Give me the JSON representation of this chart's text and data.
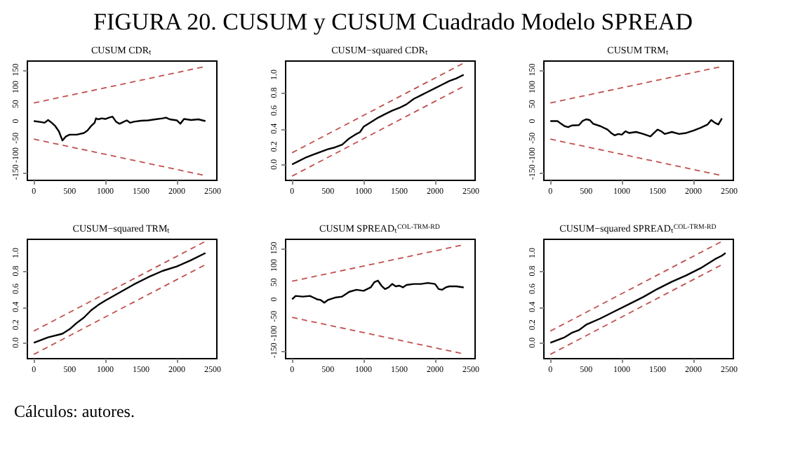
{
  "chart_data": [
    {
      "type": "other",
      "title": "FIGURA 20.  CUSUM y CUSUM Cuadrado Modelo SPREAD",
      "annotations": [
        "Cálculos: autores."
      ]
    },
    {
      "type": "line",
      "title": "CUSUM CDRₜ",
      "xlim": [
        -100,
        2550
      ],
      "xticks": [
        0,
        500,
        1000,
        1500,
        2000,
        2500
      ],
      "ylim": [
        -172,
        178
      ],
      "yticks": [
        -150,
        -100,
        -50,
        0,
        50,
        100,
        150
      ],
      "series": [
        {
          "color": "#000000",
          "x": [
            0,
            100,
            150,
            200,
            250,
            300,
            350,
            400,
            450,
            500,
            600,
            700,
            750,
            800,
            850,
            870,
            900,
            950,
            1000,
            1050,
            1100,
            1150,
            1200,
            1250,
            1300,
            1350,
            1400,
            1500,
            1600,
            1700,
            1800,
            1850,
            1900,
            2000,
            2050,
            2100,
            2200,
            2300,
            2400
          ],
          "values": [
            0,
            -3,
            -5,
            3,
            -5,
            -15,
            -30,
            -57,
            -45,
            -40,
            -40,
            -35,
            -28,
            -15,
            -5,
            8,
            5,
            8,
            6,
            10,
            13,
            -2,
            -8,
            -3,
            2,
            -5,
            -2,
            1,
            2,
            5,
            8,
            10,
            5,
            2,
            -8,
            6,
            3,
            5,
            0
          ]
        },
        {
          "color": "#c0504d",
          "line_style": "dashed",
          "x": [
            0,
            2400
          ],
          "values": [
            53,
            160
          ]
        },
        {
          "color": "#c0504d",
          "line_style": "dashed",
          "x": [
            0,
            2400
          ],
          "values": [
            -53,
            -160
          ]
        }
      ]
    },
    {
      "type": "line",
      "title": "CUSUM−squared CDRₜ",
      "xlim": [
        -100,
        2550
      ],
      "xticks": [
        0,
        500,
        1000,
        1500,
        2000,
        2500
      ],
      "ylim": [
        -0.17,
        1.16
      ],
      "yticks": [
        {
          "value": 0,
          "label": "0.0"
        },
        {
          "value": 0.2,
          "label": "0.2"
        },
        {
          "value": 0.4,
          "label": "0.4"
        },
        {
          "value": 0.6,
          "label": "0.6"
        },
        {
          "value": 0.8,
          "label": "0.8"
        },
        {
          "value": 1,
          "label": "1.0"
        }
      ],
      "series": [
        {
          "color": "#000000",
          "x": [
            0,
            100,
            200,
            300,
            400,
            500,
            600,
            700,
            800,
            900,
            950,
            1000,
            1100,
            1200,
            1300,
            1400,
            1500,
            1600,
            1700,
            1800,
            1900,
            2000,
            2100,
            2200,
            2300,
            2400
          ],
          "values": [
            0,
            0.04,
            0.08,
            0.11,
            0.14,
            0.17,
            0.19,
            0.22,
            0.29,
            0.34,
            0.36,
            0.42,
            0.47,
            0.52,
            0.56,
            0.6,
            0.63,
            0.67,
            0.73,
            0.77,
            0.81,
            0.85,
            0.89,
            0.93,
            0.96,
            1
          ]
        },
        {
          "color": "#c0504d",
          "line_style": "dashed",
          "x": [
            0,
            2400
          ],
          "values": [
            0.13,
            1.13
          ]
        },
        {
          "color": "#c0504d",
          "line_style": "dashed",
          "x": [
            0,
            2400
          ],
          "values": [
            -0.13,
            0.87
          ]
        }
      ]
    },
    {
      "type": "line",
      "title": "CUSUM TRMₜ",
      "xlim": [
        -100,
        2550
      ],
      "xticks": [
        0,
        500,
        1000,
        1500,
        2000,
        2500
      ],
      "ylim": [
        -172,
        178
      ],
      "yticks": [
        -150,
        -100,
        -50,
        0,
        50,
        100,
        150
      ],
      "series": [
        {
          "color": "#000000",
          "x": [
            0,
            100,
            150,
            200,
            250,
            300,
            400,
            450,
            500,
            550,
            600,
            700,
            800,
            850,
            900,
            950,
            1000,
            1050,
            1100,
            1200,
            1300,
            1400,
            1450,
            1500,
            1550,
            1600,
            1700,
            1800,
            1900,
            2000,
            2100,
            2200,
            2250,
            2300,
            2350,
            2400
          ],
          "values": [
            0,
            0,
            -8,
            -15,
            -18,
            -13,
            -12,
            0,
            5,
            3,
            -8,
            -15,
            -25,
            -35,
            -42,
            -38,
            -40,
            -30,
            -35,
            -32,
            -38,
            -45,
            -35,
            -25,
            -30,
            -38,
            -32,
            -38,
            -35,
            -28,
            -20,
            -10,
            3,
            -5,
            -10,
            8
          ]
        },
        {
          "color": "#c0504d",
          "line_style": "dashed",
          "x": [
            0,
            2400
          ],
          "values": [
            53,
            160
          ]
        },
        {
          "color": "#c0504d",
          "line_style": "dashed",
          "x": [
            0,
            2400
          ],
          "values": [
            -53,
            -160
          ]
        }
      ]
    },
    {
      "type": "line",
      "title": "CUSUM−squared TRMₜ",
      "xlim": [
        -100,
        2550
      ],
      "xticks": [
        0,
        500,
        1000,
        1500,
        2000,
        2500
      ],
      "ylim": [
        -0.17,
        1.16
      ],
      "yticks": [
        {
          "value": 0,
          "label": "0.0"
        },
        {
          "value": 0.2,
          "label": "0.2"
        },
        {
          "value": 0.4,
          "label": "0.4"
        },
        {
          "value": 0.6,
          "label": "0.6"
        },
        {
          "value": 0.8,
          "label": "0.8"
        },
        {
          "value": 1,
          "label": "1.0"
        }
      ],
      "series": [
        {
          "color": "#000000",
          "x": [
            0,
            200,
            400,
            500,
            600,
            700,
            800,
            900,
            1000,
            1200,
            1400,
            1600,
            1800,
            2000,
            2200,
            2400
          ],
          "values": [
            0,
            0.06,
            0.1,
            0.15,
            0.22,
            0.28,
            0.36,
            0.42,
            0.47,
            0.56,
            0.65,
            0.73,
            0.8,
            0.85,
            0.92,
            1
          ]
        },
        {
          "color": "#c0504d",
          "line_style": "dashed",
          "x": [
            0,
            2400
          ],
          "values": [
            0.13,
            1.13
          ]
        },
        {
          "color": "#c0504d",
          "line_style": "dashed",
          "x": [
            0,
            2400
          ],
          "values": [
            -0.13,
            0.87
          ]
        }
      ]
    },
    {
      "type": "line",
      "title": "CUSUM SPREADₜ$^{COL-TRM-RD}$",
      "xlim": [
        -100,
        2550
      ],
      "xticks": [
        0,
        500,
        1000,
        1500,
        2000,
        2500
      ],
      "ylim": [
        -172,
        178
      ],
      "yticks": [
        -150,
        -100,
        -50,
        0,
        50,
        100,
        150
      ],
      "series": [
        {
          "color": "#000000",
          "x": [
            0,
            50,
            150,
            250,
            300,
            350,
            400,
            450,
            500,
            600,
            700,
            800,
            900,
            1000,
            1050,
            1100,
            1150,
            1200,
            1250,
            1300,
            1350,
            1400,
            1450,
            1500,
            1550,
            1600,
            1700,
            1800,
            1900,
            2000,
            2050,
            2100,
            2150,
            2200,
            2300,
            2400
          ],
          "values": [
            0,
            10,
            8,
            10,
            5,
            0,
            -2,
            -10,
            -2,
            5,
            8,
            22,
            28,
            25,
            30,
            35,
            50,
            55,
            40,
            30,
            35,
            45,
            38,
            40,
            35,
            42,
            45,
            45,
            48,
            45,
            30,
            28,
            35,
            38,
            38,
            35
          ]
        },
        {
          "color": "#c0504d",
          "line_style": "dashed",
          "x": [
            0,
            2400
          ],
          "values": [
            53,
            160
          ]
        },
        {
          "color": "#c0504d",
          "line_style": "dashed",
          "x": [
            0,
            2400
          ],
          "values": [
            -53,
            -160
          ]
        }
      ]
    },
    {
      "type": "line",
      "title": "CUSUM−squared SPREADₜ$^{COL-TRM-RD}$",
      "xlim": [
        -100,
        2550
      ],
      "xticks": [
        0,
        500,
        1000,
        1500,
        2000,
        2500
      ],
      "ylim": [
        -0.17,
        1.16
      ],
      "yticks": [
        {
          "value": 0,
          "label": "0.0"
        },
        {
          "value": 0.2,
          "label": "0.2"
        },
        {
          "value": 0.4,
          "label": "0.4"
        },
        {
          "value": 0.6,
          "label": "0.6"
        },
        {
          "value": 0.8,
          "label": "0.8"
        },
        {
          "value": 1,
          "label": "1.0"
        }
      ],
      "series": [
        {
          "color": "#000000",
          "x": [
            0,
            200,
            300,
            400,
            500,
            700,
            900,
            1100,
            1300,
            1500,
            1700,
            1900,
            2100,
            2300,
            2400,
            2450
          ],
          "values": [
            0,
            0.06,
            0.11,
            0.14,
            0.2,
            0.27,
            0.35,
            0.43,
            0.51,
            0.6,
            0.68,
            0.75,
            0.83,
            0.93,
            0.97,
            1
          ]
        },
        {
          "color": "#c0504d",
          "line_style": "dashed",
          "x": [
            0,
            2400
          ],
          "values": [
            0.13,
            1.13
          ]
        },
        {
          "color": "#c0504d",
          "line_style": "dashed",
          "x": [
            0,
            2400
          ],
          "values": [
            -0.13,
            0.87
          ]
        }
      ]
    }
  ]
}
